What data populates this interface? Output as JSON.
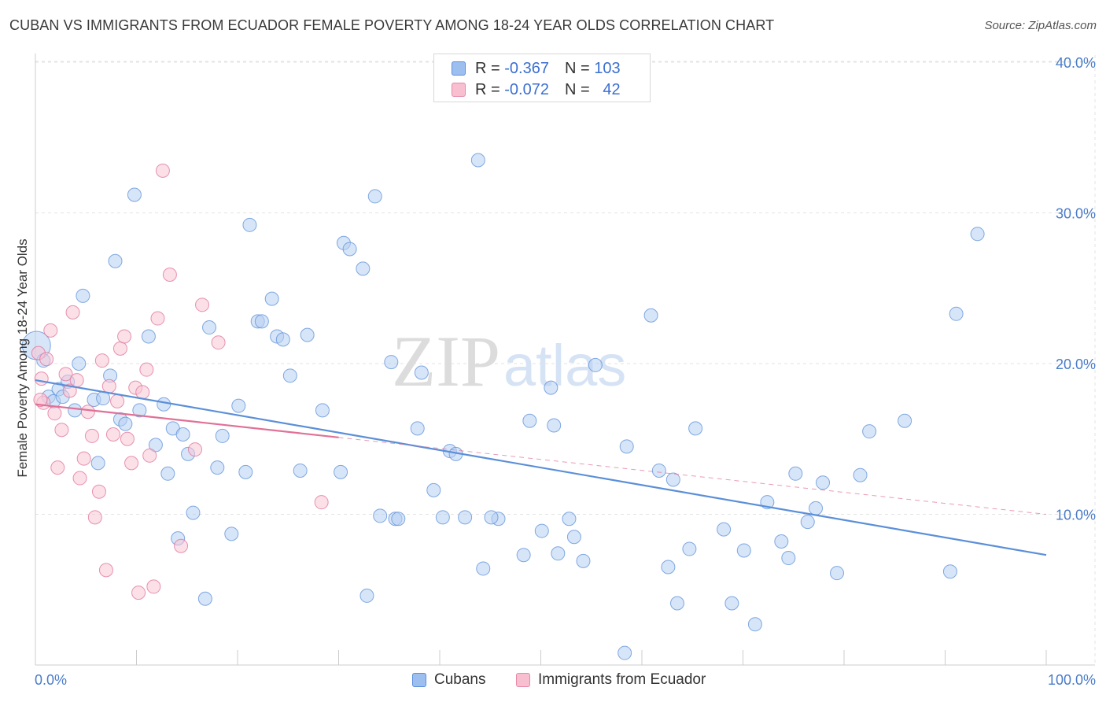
{
  "title": "CUBAN VS IMMIGRANTS FROM ECUADOR FEMALE POVERTY AMONG 18-24 YEAR OLDS CORRELATION CHART",
  "source": "Source: ZipAtlas.com",
  "watermark": "ZIPatlas",
  "legend_stats": [
    {
      "r_label": "R =",
      "r_value": "-0.367",
      "n_label": "N =",
      "n_value": "103",
      "color": "#9dbff0",
      "border": "#5b8fd8"
    },
    {
      "r_label": "R =",
      "r_value": "-0.072",
      "n_label": "N =",
      "n_value": "42",
      "color": "#f7bfd0",
      "border": "#e58aa8"
    }
  ],
  "chart_data": {
    "type": "scatter",
    "title": "CUBAN VS IMMIGRANTS FROM ECUADOR FEMALE POVERTY AMONG 18-24 YEAR OLDS CORRELATION CHART",
    "xlabel": "",
    "ylabel": "Female Poverty Among 18-24 Year Olds",
    "xlim": [
      0,
      100
    ],
    "ylim": [
      0,
      42
    ],
    "x_tick_labels": [
      "0.0%",
      "100.0%"
    ],
    "y_ticks": [
      10,
      20,
      30,
      40
    ],
    "y_tick_labels": [
      "10.0%",
      "20.0%",
      "30.0%",
      "40.0%"
    ],
    "grid": true,
    "legend_position": "bottom",
    "series": [
      {
        "name": "Cubans",
        "color": "#5b8fd8",
        "fill": "#b7d0f3",
        "trend": {
          "x": [
            0,
            100
          ],
          "y": [
            18.9,
            7.3
          ],
          "style": "solid"
        },
        "points": [
          [
            0.1,
            21.2
          ],
          [
            0.8,
            20.2
          ],
          [
            1.3,
            17.8
          ],
          [
            1.8,
            17.5
          ],
          [
            2.3,
            18.3
          ],
          [
            3.2,
            18.8
          ],
          [
            3.9,
            16.9
          ],
          [
            4.3,
            20.0
          ],
          [
            4.7,
            24.5
          ],
          [
            5.8,
            17.6
          ],
          [
            6.2,
            13.4
          ],
          [
            6.7,
            17.7
          ],
          [
            7.4,
            19.2
          ],
          [
            7.9,
            26.8
          ],
          [
            8.4,
            16.3
          ],
          [
            8.9,
            16.0
          ],
          [
            9.8,
            31.2
          ],
          [
            10.3,
            16.9
          ],
          [
            11.2,
            21.8
          ],
          [
            11.9,
            14.6
          ],
          [
            12.7,
            17.3
          ],
          [
            13.1,
            12.7
          ],
          [
            13.6,
            15.7
          ],
          [
            14.1,
            8.4
          ],
          [
            14.6,
            15.3
          ],
          [
            15.1,
            14.0
          ],
          [
            15.6,
            10.1
          ],
          [
            16.8,
            4.4
          ],
          [
            17.2,
            22.4
          ],
          [
            18.0,
            13.1
          ],
          [
            18.5,
            15.2
          ],
          [
            19.4,
            8.7
          ],
          [
            20.1,
            17.2
          ],
          [
            20.8,
            12.8
          ],
          [
            21.2,
            29.2
          ],
          [
            22.0,
            22.8
          ],
          [
            22.4,
            22.8
          ],
          [
            23.4,
            24.3
          ],
          [
            23.9,
            21.8
          ],
          [
            24.5,
            21.6
          ],
          [
            25.2,
            19.2
          ],
          [
            26.9,
            21.9
          ],
          [
            28.4,
            16.9
          ],
          [
            30.2,
            12.8
          ],
          [
            30.5,
            28.0
          ],
          [
            31.1,
            27.6
          ],
          [
            32.4,
            26.3
          ],
          [
            32.8,
            4.6
          ],
          [
            33.6,
            31.1
          ],
          [
            34.1,
            9.9
          ],
          [
            35.2,
            20.1
          ],
          [
            35.6,
            9.7
          ],
          [
            37.8,
            15.7
          ],
          [
            38.2,
            19.4
          ],
          [
            39.4,
            11.6
          ],
          [
            40.3,
            9.8
          ],
          [
            41.0,
            14.2
          ],
          [
            41.6,
            14.0
          ],
          [
            42.5,
            9.8
          ],
          [
            43.8,
            33.5
          ],
          [
            44.3,
            6.4
          ],
          [
            45.8,
            9.7
          ],
          [
            48.3,
            7.3
          ],
          [
            48.9,
            16.2
          ],
          [
            50.1,
            8.9
          ],
          [
            51.0,
            18.4
          ],
          [
            51.3,
            15.9
          ],
          [
            51.7,
            7.4
          ],
          [
            52.8,
            9.7
          ],
          [
            53.3,
            8.5
          ],
          [
            54.2,
            6.9
          ],
          [
            55.4,
            19.9
          ],
          [
            58.3,
            0.8
          ],
          [
            58.5,
            14.5
          ],
          [
            60.9,
            23.2
          ],
          [
            61.7,
            12.9
          ],
          [
            62.6,
            6.5
          ],
          [
            63.1,
            12.3
          ],
          [
            63.5,
            4.1
          ],
          [
            64.7,
            7.7
          ],
          [
            65.3,
            15.7
          ],
          [
            68.1,
            9.0
          ],
          [
            68.9,
            4.1
          ],
          [
            70.1,
            7.6
          ],
          [
            71.2,
            2.7
          ],
          [
            72.4,
            10.8
          ],
          [
            73.8,
            8.2
          ],
          [
            74.5,
            7.1
          ],
          [
            75.2,
            12.7
          ],
          [
            76.4,
            9.5
          ],
          [
            77.2,
            10.4
          ],
          [
            77.9,
            12.1
          ],
          [
            79.3,
            6.1
          ],
          [
            81.6,
            12.6
          ],
          [
            82.5,
            15.5
          ],
          [
            86.0,
            16.2
          ],
          [
            90.5,
            6.2
          ],
          [
            91.1,
            23.3
          ],
          [
            93.2,
            28.6
          ],
          [
            45.1,
            9.8
          ],
          [
            26.2,
            12.9
          ],
          [
            35.9,
            9.7
          ],
          [
            2.7,
            17.8
          ]
        ]
      },
      {
        "name": "Immigrants from Ecuador",
        "color": "#e07097",
        "fill": "#f8c7d6",
        "trend": {
          "x": [
            0,
            30
          ],
          "y": [
            17.3,
            15.1
          ],
          "style": "solid",
          "extension": {
            "x": [
              30,
              100
            ],
            "y": [
              15.1,
              10.0
            ],
            "style": "dashed"
          }
        },
        "points": [
          [
            0.3,
            20.7
          ],
          [
            0.6,
            19.0
          ],
          [
            0.8,
            17.4
          ],
          [
            1.1,
            20.3
          ],
          [
            1.5,
            22.2
          ],
          [
            1.9,
            16.7
          ],
          [
            2.2,
            13.1
          ],
          [
            2.6,
            15.6
          ],
          [
            3.0,
            19.3
          ],
          [
            3.4,
            18.2
          ],
          [
            3.7,
            23.4
          ],
          [
            4.1,
            18.9
          ],
          [
            4.4,
            12.4
          ],
          [
            4.8,
            13.7
          ],
          [
            5.2,
            16.8
          ],
          [
            5.6,
            15.2
          ],
          [
            5.9,
            9.8
          ],
          [
            6.3,
            11.5
          ],
          [
            6.6,
            20.2
          ],
          [
            7.0,
            6.3
          ],
          [
            7.3,
            18.5
          ],
          [
            7.7,
            15.3
          ],
          [
            8.1,
            17.5
          ],
          [
            8.4,
            21.0
          ],
          [
            8.8,
            21.8
          ],
          [
            9.1,
            15.0
          ],
          [
            9.5,
            13.4
          ],
          [
            9.9,
            18.4
          ],
          [
            10.2,
            4.8
          ],
          [
            10.6,
            18.1
          ],
          [
            11.0,
            19.6
          ],
          [
            11.3,
            13.9
          ],
          [
            11.7,
            5.2
          ],
          [
            12.1,
            23.0
          ],
          [
            12.6,
            32.8
          ],
          [
            13.3,
            25.9
          ],
          [
            14.4,
            7.9
          ],
          [
            15.8,
            14.3
          ],
          [
            16.5,
            23.9
          ],
          [
            18.1,
            21.4
          ],
          [
            28.3,
            10.8
          ],
          [
            0.5,
            17.6
          ]
        ]
      }
    ]
  }
}
